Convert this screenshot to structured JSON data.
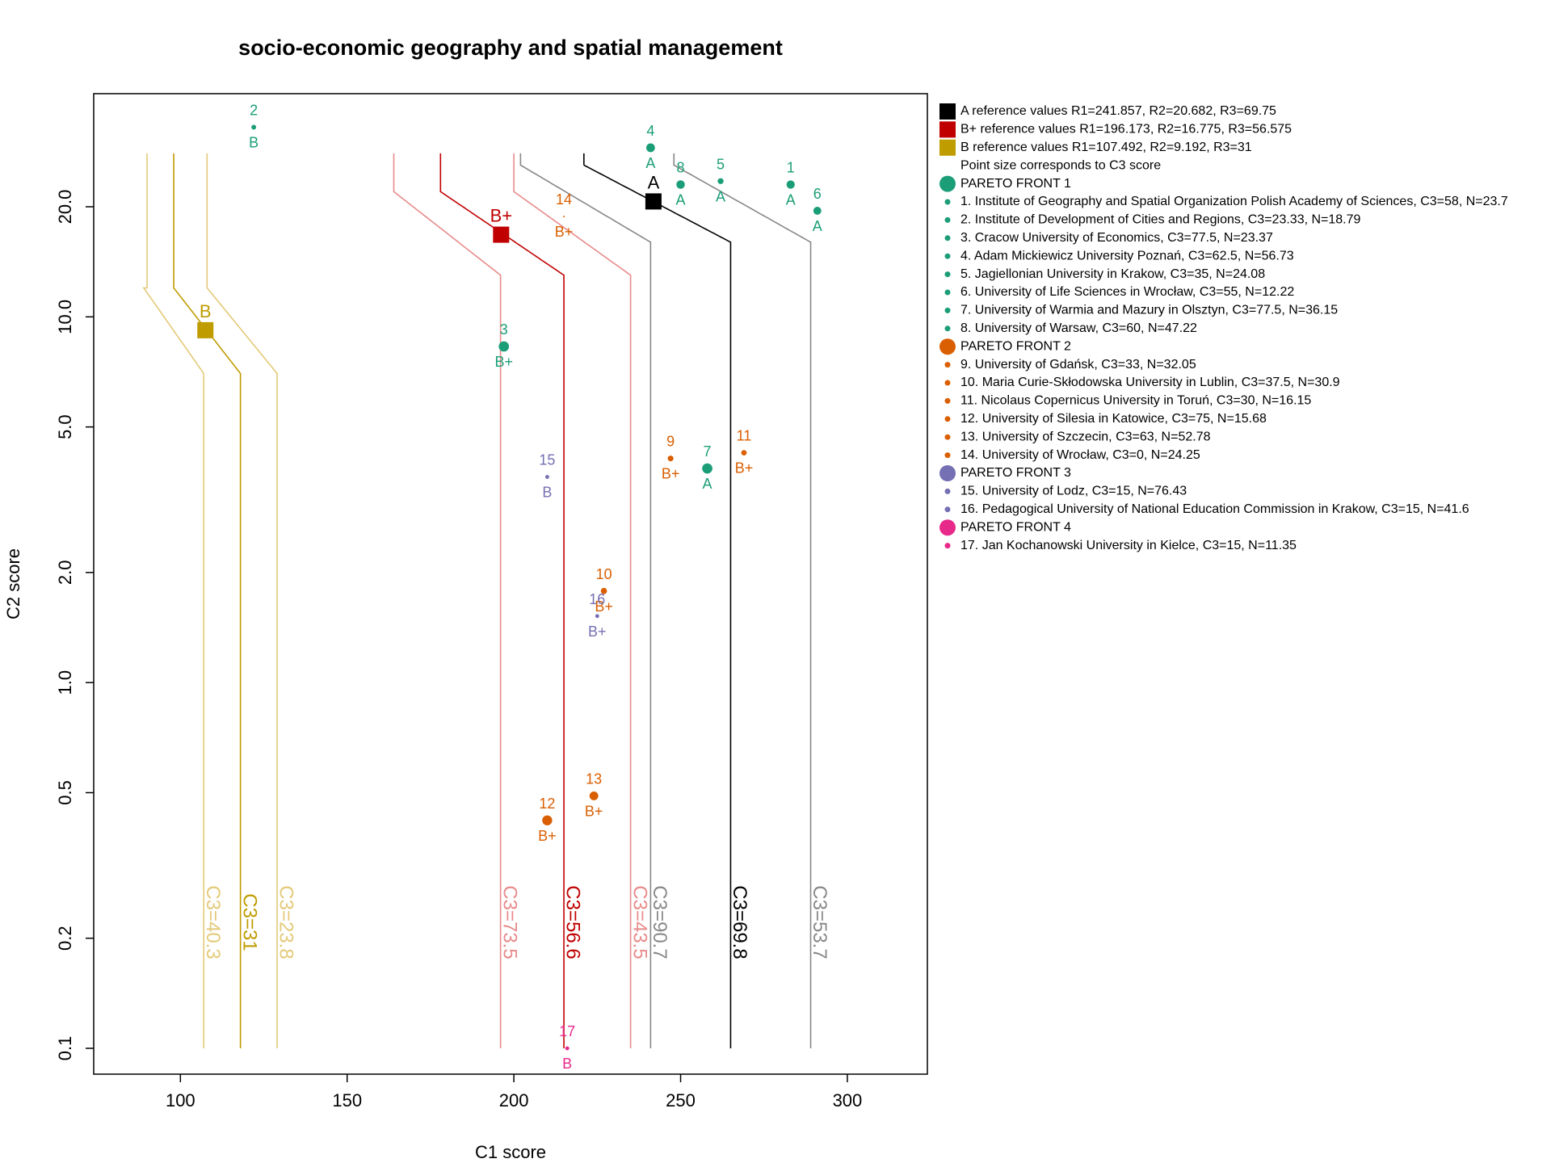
{
  "chart_data": {
    "type": "scatter",
    "title": "socio-economic geography and spatial management",
    "xlabel": "C1 score",
    "ylabel": "C2 score",
    "xlim": [
      74,
      324
    ],
    "ylim": [
      0.085,
      36
    ],
    "y_scale": "log",
    "x_ticks": [
      100,
      150,
      200,
      250,
      300
    ],
    "y_ticks": [
      0.1,
      0.2,
      0.5,
      1.0,
      2.0,
      5.0,
      10.0,
      20.0
    ],
    "y_tick_labels": [
      "0.1",
      "0.2",
      "0.5",
      "1.0",
      "2.0",
      "5.0",
      "10.0",
      "20.0"
    ],
    "grid": false,
    "legend_position": "right",
    "legend": [
      {
        "kind": "square",
        "color": "#000000",
        "text": "A reference values R1=241.857, R2=20.682, R3=69.75"
      },
      {
        "kind": "square",
        "color": "#c00000",
        "text": "B+ reference values R1=196.173, R2=16.775, R3=56.575"
      },
      {
        "kind": "square",
        "color": "#bf9c00",
        "text": "B reference values R1=107.492, R2=9.192, R3=31"
      },
      {
        "kind": "none",
        "color": "",
        "text": "Point size corresponds to C3 score"
      },
      {
        "kind": "big",
        "color": "#1b9e77",
        "text": "PARETO FRONT 1"
      },
      {
        "kind": "small",
        "color": "#1b9e77",
        "text": "1. Institute of Geography and Spatial Organization Polish Academy of Sciences, C3=58, N=23.7"
      },
      {
        "kind": "small",
        "color": "#1b9e77",
        "text": "2. Institute of Development of Cities and Regions, C3=23.33, N=18.79"
      },
      {
        "kind": "small",
        "color": "#1b9e77",
        "text": "3. Cracow University of Economics, C3=77.5, N=23.37"
      },
      {
        "kind": "small",
        "color": "#1b9e77",
        "text": "4. Adam Mickiewicz University Poznań, C3=62.5, N=56.73"
      },
      {
        "kind": "small",
        "color": "#1b9e77",
        "text": "5. Jagiellonian University in Krakow, C3=35, N=24.08"
      },
      {
        "kind": "small",
        "color": "#1b9e77",
        "text": "6. University of Life Sciences in Wrocław, C3=55, N=12.22"
      },
      {
        "kind": "small",
        "color": "#1b9e77",
        "text": "7. University of Warmia and Mazury in Olsztyn, C3=77.5, N=36.15"
      },
      {
        "kind": "small",
        "color": "#1b9e77",
        "text": "8. University of Warsaw, C3=60, N=47.22"
      },
      {
        "kind": "big",
        "color": "#d95f02",
        "text": "PARETO FRONT 2"
      },
      {
        "kind": "small",
        "color": "#d95f02",
        "text": "9. University of Gdańsk, C3=33, N=32.05"
      },
      {
        "kind": "small",
        "color": "#d95f02",
        "text": "10. Maria Curie-Skłodowska University in Lublin, C3=37.5, N=30.9"
      },
      {
        "kind": "small",
        "color": "#d95f02",
        "text": "11. Nicolaus Copernicus University in Toruń, C3=30, N=16.15"
      },
      {
        "kind": "small",
        "color": "#d95f02",
        "text": "12. University of Silesia in Katowice, C3=75, N=15.68"
      },
      {
        "kind": "small",
        "color": "#d95f02",
        "text": "13. University of Szczecin, C3=63, N=52.78"
      },
      {
        "kind": "small",
        "color": "#d95f02",
        "text": "14. University of Wrocław, C3=0, N=24.25"
      },
      {
        "kind": "big",
        "color": "#7570b3",
        "text": "PARETO FRONT 3"
      },
      {
        "kind": "small",
        "color": "#7570b3",
        "text": "15. University of Lodz, C3=15, N=76.43"
      },
      {
        "kind": "small",
        "color": "#7570b3",
        "text": "16. Pedagogical University of National Education Commission in Krakow, C3=15, N=41.6"
      },
      {
        "kind": "big",
        "color": "#e7298a",
        "text": "PARETO FRONT 4"
      },
      {
        "kind": "small",
        "color": "#e7298a",
        "text": "17. Jan Kochanowski University in Kielce, C3=15, N=11.35"
      }
    ],
    "points": [
      {
        "id": "1",
        "x": 283,
        "y": 23.0,
        "c3": 58,
        "grade": "A",
        "front": 1
      },
      {
        "id": "2",
        "x": 122,
        "y": 33.0,
        "c3": 23.33,
        "grade": "B",
        "front": 1
      },
      {
        "id": "3",
        "x": 197,
        "y": 8.3,
        "c3": 77.5,
        "grade": "B+",
        "front": 1
      },
      {
        "id": "4",
        "x": 241,
        "y": 29.0,
        "c3": 62.5,
        "grade": "A",
        "front": 1
      },
      {
        "id": "5",
        "x": 262,
        "y": 23.5,
        "c3": 35,
        "grade": "A",
        "front": 1
      },
      {
        "id": "6",
        "x": 291,
        "y": 19.5,
        "c3": 55,
        "grade": "A",
        "front": 1
      },
      {
        "id": "7",
        "x": 258,
        "y": 3.85,
        "c3": 77.5,
        "grade": "A",
        "front": 1
      },
      {
        "id": "8",
        "x": 250,
        "y": 23.0,
        "c3": 60,
        "grade": "A",
        "front": 1
      },
      {
        "id": "9",
        "x": 247,
        "y": 4.1,
        "c3": 33,
        "grade": "B+",
        "front": 2
      },
      {
        "id": "10",
        "x": 227,
        "y": 1.78,
        "c3": 37.5,
        "grade": "B+",
        "front": 2
      },
      {
        "id": "11",
        "x": 269,
        "y": 4.25,
        "c3": 30,
        "grade": "B+",
        "front": 2
      },
      {
        "id": "12",
        "x": 210,
        "y": 0.42,
        "c3": 75,
        "grade": "B+",
        "front": 2
      },
      {
        "id": "13",
        "x": 224,
        "y": 0.49,
        "c3": 63,
        "grade": "B+",
        "front": 2
      },
      {
        "id": "14",
        "x": 215,
        "y": 18.8,
        "c3": 0,
        "grade": "B+",
        "front": 2
      },
      {
        "id": "15",
        "x": 210,
        "y": 3.65,
        "c3": 15,
        "grade": "B",
        "front": 3
      },
      {
        "id": "16",
        "x": 225,
        "y": 1.52,
        "c3": 15,
        "grade": "B+",
        "front": 3
      },
      {
        "id": "17",
        "x": 216,
        "y": 0.1,
        "c3": 15,
        "grade": "B",
        "front": 4
      }
    ],
    "reference_points": [
      {
        "label": "A",
        "x": 241.857,
        "y": 20.682,
        "color": "#000000"
      },
      {
        "label": "B+",
        "x": 196.173,
        "y": 16.775,
        "color": "#c00000"
      },
      {
        "label": "B",
        "x": 107.492,
        "y": 9.192,
        "color": "#bf9c00"
      }
    ],
    "curves": [
      {
        "label": "C3=40.3",
        "color": "#e3c977",
        "xb": 107,
        "shift": 18,
        "ya": 7.0,
        "yb": 12.0,
        "xt": 90
      },
      {
        "label": "C3=31",
        "color": "#bf9c00",
        "xb": 118,
        "shift": 20,
        "ya": 7.0,
        "yb": 12.0,
        "xt": 98
      },
      {
        "label": "C3=23.8",
        "color": "#e3c977",
        "xb": 129,
        "shift": 21,
        "ya": 7.0,
        "yb": 12.0,
        "xt": 108
      },
      {
        "label": "C3=73.5",
        "color": "#e88a8a",
        "xb": 196,
        "shift": 32,
        "ya": 13.0,
        "yb": 22.0,
        "xt": 164
      },
      {
        "label": "C3=56.6",
        "color": "#c00000",
        "xb": 215,
        "shift": 37,
        "ya": 13.0,
        "yb": 22.0,
        "xt": 178
      },
      {
        "label": "C3=43.5",
        "color": "#e88a8a",
        "xb": 235,
        "shift": 35,
        "ya": 13.0,
        "yb": 22.0,
        "xt": 200
      },
      {
        "label": "C3=90.7",
        "color": "#888888",
        "xb": 241,
        "shift": 39,
        "ya": 16.0,
        "yb": 26.0,
        "xt": 202
      },
      {
        "label": "C3=69.8",
        "color": "#000000",
        "xb": 265,
        "shift": 44,
        "ya": 16.0,
        "yb": 26.0,
        "xt": 221
      },
      {
        "label": "C3=53.7",
        "color": "#888888",
        "xb": 289,
        "shift": 41,
        "ya": 16.0,
        "yb": 26.0,
        "xt": 248
      }
    ],
    "front_colors": {
      "1": "#1b9e77",
      "2": "#d95f02",
      "3": "#7570b3",
      "4": "#e7298a"
    }
  }
}
